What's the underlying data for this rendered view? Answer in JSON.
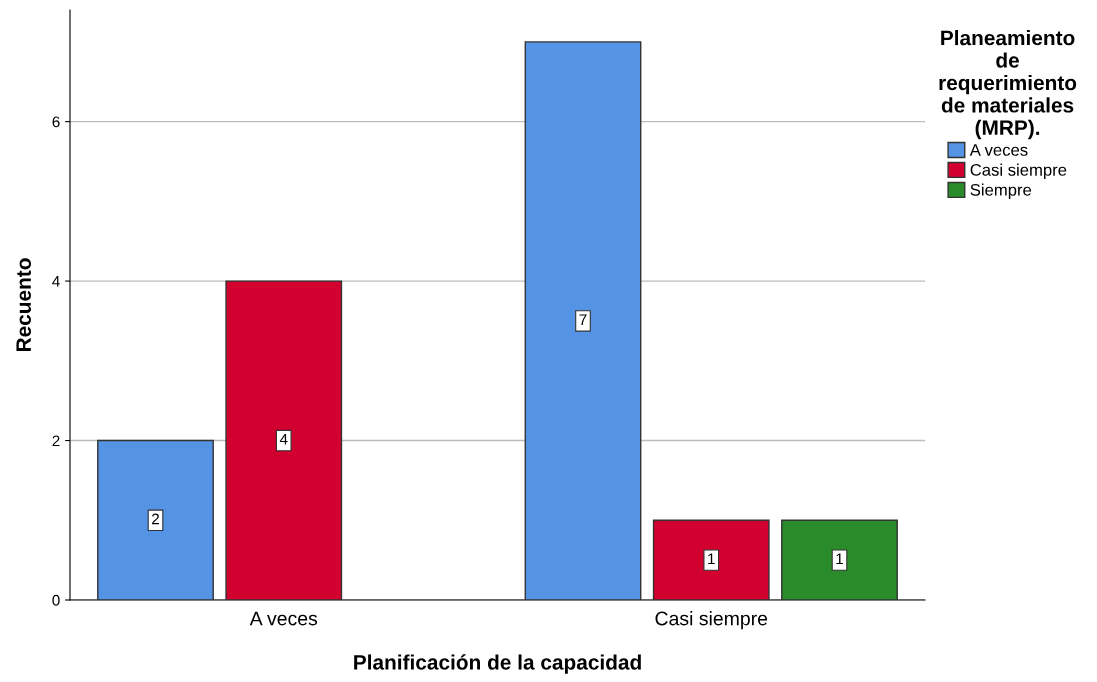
{
  "chart_data": {
    "type": "bar",
    "xlabel": "Planificación de la capacidad",
    "ylabel": "Recuento",
    "legend_title": "Planeamiento\nde\nrequerimiento\nde materiales\n(MRP).",
    "categories": [
      "A veces",
      "Casi siempre"
    ],
    "series": [
      {
        "name": "A veces",
        "color": "#5593e4",
        "values": [
          2,
          7
        ]
      },
      {
        "name": "Casi siempre",
        "color": "#d2002e",
        "values": [
          4,
          1
        ]
      },
      {
        "name": "Siempre",
        "color": "#2a8b2a",
        "values": [
          null,
          1
        ]
      }
    ],
    "ylim": [
      0,
      7.4
    ],
    "yticks": [
      0,
      2,
      4,
      6
    ],
    "grid": "y",
    "legend": "top right",
    "data_labels": true
  }
}
